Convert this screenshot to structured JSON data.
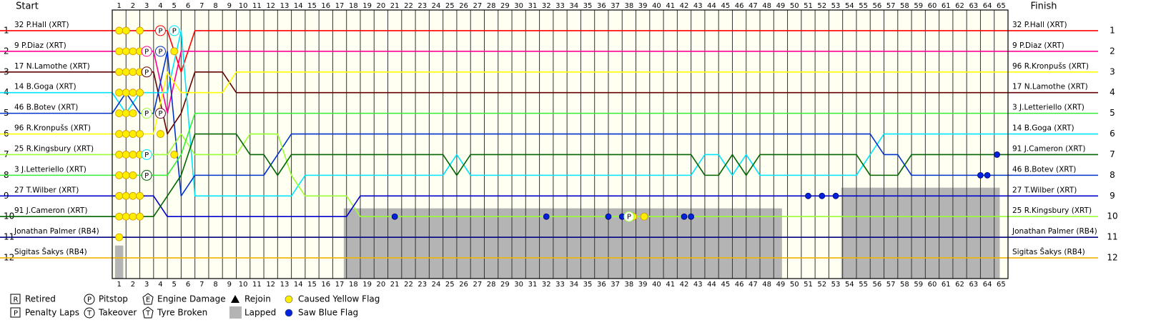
{
  "chart_data": {
    "type": "lap-chart",
    "start_label": "Start",
    "finish_label": "Finish",
    "xlim": [
      0,
      65
    ],
    "ylim": [
      0,
      13
    ],
    "y_inverted": true,
    "x": [
      0,
      1,
      2,
      3,
      4,
      5,
      6,
      7,
      8,
      9,
      10,
      11,
      12,
      13,
      14,
      15,
      16,
      17,
      18,
      19,
      20,
      21,
      22,
      23,
      24,
      25,
      26,
      27,
      28,
      29,
      30,
      31,
      32,
      33,
      34,
      35,
      36,
      37,
      38,
      39,
      40,
      41,
      42,
      43,
      44,
      45,
      46,
      47,
      48,
      49,
      50,
      51,
      52,
      53,
      54,
      55,
      56,
      57,
      58,
      59,
      60,
      61,
      62,
      63,
      64,
      65
    ],
    "xticks": [
      1,
      2,
      3,
      4,
      5,
      6,
      7,
      8,
      9,
      10,
      11,
      12,
      13,
      14,
      15,
      16,
      17,
      18,
      19,
      20,
      21,
      22,
      23,
      24,
      25,
      26,
      27,
      28,
      29,
      30,
      31,
      32,
      33,
      34,
      35,
      36,
      37,
      38,
      39,
      40,
      41,
      42,
      43,
      44,
      45,
      46,
      47,
      48,
      49,
      50,
      51,
      52,
      53,
      54,
      55,
      56,
      57,
      58,
      59,
      60,
      61,
      62,
      63,
      64,
      65
    ],
    "yticks": [
      1,
      2,
      3,
      4,
      5,
      6,
      7,
      8,
      9,
      10,
      11,
      12
    ],
    "series": [
      {
        "name": "32 P.Hall (XRT)",
        "color": "#ff0000",
        "values": [
          1,
          1,
          1,
          1,
          1,
          3,
          1,
          1,
          1,
          1,
          1,
          1,
          1,
          1,
          1,
          1,
          1,
          1,
          1,
          1,
          1,
          1,
          1,
          1,
          1,
          1,
          1,
          1,
          1,
          1,
          1,
          1,
          1,
          1,
          1,
          1,
          1,
          1,
          1,
          1,
          1,
          1,
          1,
          1,
          1,
          1,
          1,
          1,
          1,
          1,
          1,
          1,
          1,
          1,
          1,
          1,
          1,
          1,
          1,
          1,
          1,
          1,
          1,
          1,
          1,
          1
        ]
      },
      {
        "name": "9 P.Diaz (XRT)",
        "color": "#ff0099",
        "values": [
          2,
          2,
          2,
          2,
          5,
          2,
          2,
          2,
          2,
          2,
          2,
          2,
          2,
          2,
          2,
          2,
          2,
          2,
          2,
          2,
          2,
          2,
          2,
          2,
          2,
          2,
          2,
          2,
          2,
          2,
          2,
          2,
          2,
          2,
          2,
          2,
          2,
          2,
          2,
          2,
          2,
          2,
          2,
          2,
          2,
          2,
          2,
          2,
          2,
          2,
          2,
          2,
          2,
          2,
          2,
          2,
          2,
          2,
          2,
          2,
          2,
          2,
          2,
          2,
          2,
          2
        ]
      },
      {
        "name": "17 N.Lamothe (XRT)",
        "color": "#660000",
        "values": [
          3,
          3,
          3,
          3,
          6,
          5,
          3,
          3,
          3,
          4,
          4,
          4,
          4,
          4,
          4,
          4,
          4,
          4,
          4,
          4,
          4,
          4,
          4,
          4,
          4,
          4,
          4,
          4,
          4,
          4,
          4,
          4,
          4,
          4,
          4,
          4,
          4,
          4,
          4,
          4,
          4,
          4,
          4,
          4,
          4,
          4,
          4,
          4,
          4,
          4,
          4,
          4,
          4,
          4,
          4,
          4,
          4,
          4,
          4,
          4,
          4,
          4,
          4,
          4,
          4,
          4
        ]
      },
      {
        "name": "14 B.Goga (XRT)",
        "color": "#00e5ff",
        "values": [
          4,
          5,
          4,
          4,
          4,
          1,
          9,
          9,
          9,
          9,
          9,
          9,
          9,
          9,
          8,
          8,
          8,
          8,
          8,
          8,
          8,
          8,
          8,
          8,
          8,
          7,
          8,
          8,
          8,
          8,
          8,
          8,
          8,
          8,
          8,
          8,
          8,
          8,
          8,
          8,
          8,
          8,
          8,
          7,
          7,
          8,
          7,
          8,
          8,
          8,
          8,
          8,
          8,
          8,
          8,
          7,
          6,
          6,
          6,
          6,
          6,
          6,
          6,
          6,
          6,
          6
        ]
      },
      {
        "name": "46 B.Botev (XRT)",
        "color": "#0033cc",
        "values": [
          5,
          4,
          5,
          5,
          2,
          9,
          8,
          8,
          8,
          8,
          8,
          8,
          7,
          6,
          6,
          6,
          6,
          6,
          6,
          6,
          6,
          6,
          6,
          6,
          6,
          6,
          6,
          6,
          6,
          6,
          6,
          6,
          6,
          6,
          6,
          6,
          6,
          6,
          6,
          6,
          6,
          6,
          6,
          6,
          6,
          6,
          6,
          6,
          6,
          6,
          6,
          6,
          6,
          6,
          6,
          6,
          7,
          7,
          8,
          8,
          8,
          8,
          8,
          8,
          8,
          8
        ]
      },
      {
        "name": "96 R.Kronpušs (XRT)",
        "color": "#ffff00",
        "values": [
          6,
          6,
          6,
          6,
          3,
          4,
          4,
          4,
          4,
          3,
          3,
          3,
          3,
          3,
          3,
          3,
          3,
          3,
          3,
          3,
          3,
          3,
          3,
          3,
          3,
          3,
          3,
          3,
          3,
          3,
          3,
          3,
          3,
          3,
          3,
          3,
          3,
          3,
          3,
          3,
          3,
          3,
          3,
          3,
          3,
          3,
          3,
          3,
          3,
          3,
          3,
          3,
          3,
          3,
          3,
          3,
          3,
          3,
          3,
          3,
          3,
          3,
          3,
          3,
          3,
          3
        ]
      },
      {
        "name": "25 R.Kingsbury (XRT)",
        "color": "#99ff33",
        "values": [
          7,
          7,
          7,
          7,
          7,
          6,
          7,
          7,
          7,
          7,
          6,
          6,
          6,
          8,
          9,
          9,
          9,
          9,
          10,
          10,
          10,
          10,
          10,
          10,
          10,
          10,
          10,
          10,
          10,
          10,
          10,
          10,
          10,
          10,
          10,
          10,
          10,
          10,
          10,
          10,
          10,
          10,
          10,
          10,
          10,
          10,
          10,
          10,
          10,
          10,
          10,
          10,
          10,
          10,
          10,
          10,
          10,
          10,
          10,
          10,
          10,
          10,
          10,
          10,
          10,
          10
        ]
      },
      {
        "name": "3 J.Letteriello (XRT)",
        "color": "#33ee33",
        "values": [
          8,
          8,
          8,
          8,
          8,
          7,
          5,
          5,
          5,
          5,
          5,
          5,
          5,
          5,
          5,
          5,
          5,
          5,
          5,
          5,
          5,
          5,
          5,
          5,
          5,
          5,
          5,
          5,
          5,
          5,
          5,
          5,
          5,
          5,
          5,
          5,
          5,
          5,
          5,
          5,
          5,
          5,
          5,
          5,
          5,
          5,
          5,
          5,
          5,
          5,
          5,
          5,
          5,
          5,
          5,
          5,
          5,
          5,
          5,
          5,
          5,
          5,
          5,
          5,
          5,
          5
        ]
      },
      {
        "name": "27 T.Wilber (XRT)",
        "color": "#0000cc",
        "values": [
          9,
          9,
          9,
          9,
          10,
          10,
          10,
          10,
          10,
          10,
          10,
          10,
          10,
          10,
          10,
          10,
          10,
          10,
          9,
          9,
          9,
          9,
          9,
          9,
          9,
          9,
          9,
          9,
          9,
          9,
          9,
          9,
          9,
          9,
          9,
          9,
          9,
          9,
          9,
          9,
          9,
          9,
          9,
          9,
          9,
          9,
          9,
          9,
          9,
          9,
          9,
          9,
          9,
          9,
          9,
          9,
          9,
          9,
          9,
          9,
          9,
          9,
          9,
          9,
          9,
          9
        ]
      },
      {
        "name": "91 J.Cameron (XRT)",
        "color": "#006600",
        "values": [
          10,
          10,
          10,
          10,
          9,
          8,
          6,
          6,
          6,
          6,
          7,
          7,
          8,
          7,
          7,
          7,
          7,
          7,
          7,
          7,
          7,
          7,
          7,
          7,
          7,
          8,
          7,
          7,
          7,
          7,
          7,
          7,
          7,
          7,
          7,
          7,
          7,
          7,
          7,
          7,
          7,
          7,
          7,
          8,
          8,
          7,
          8,
          7,
          7,
          7,
          7,
          7,
          7,
          7,
          7,
          8,
          8,
          8,
          7,
          7,
          7,
          7,
          7,
          7,
          7,
          7
        ]
      },
      {
        "name": "Jonathan Palmer (RB4)",
        "color": "#000080",
        "values": [
          11,
          11,
          11,
          11,
          11,
          11,
          11,
          11,
          11,
          11,
          11,
          11,
          11,
          11,
          11,
          11,
          11,
          11,
          11,
          11,
          11,
          11,
          11,
          11,
          11,
          11,
          11,
          11,
          11,
          11,
          11,
          11,
          11,
          11,
          11,
          11,
          11,
          11,
          11,
          11,
          11,
          11,
          11,
          11,
          11,
          11,
          11,
          11,
          11,
          11,
          11,
          11,
          11,
          11,
          11,
          11,
          11,
          11,
          11,
          11,
          11,
          11,
          11,
          11,
          11,
          11
        ]
      },
      {
        "name": "Sigitas Šakys (RB4)",
        "color": "#f0b400",
        "values": [
          12,
          12,
          12,
          12,
          12,
          12,
          12,
          12,
          12,
          12,
          12,
          12,
          12,
          12,
          12,
          12,
          12,
          12,
          12,
          12,
          12,
          12,
          12,
          12,
          12,
          12,
          12,
          12,
          12,
          12,
          12,
          12,
          12,
          12,
          12,
          12,
          12,
          12,
          12,
          12,
          12,
          12,
          12,
          12,
          12,
          12,
          12,
          12,
          12,
          12,
          12,
          12,
          12,
          12,
          12,
          12,
          12,
          12,
          12,
          12,
          12,
          12,
          12,
          12,
          12,
          12
        ]
      }
    ],
    "lapped": [
      {
        "x": [
          0.2,
          0.8
        ],
        "y": [
          11.4,
          13
        ]
      },
      {
        "x": [
          16.8,
          48.6
        ],
        "y": [
          9.6,
          13
        ]
      },
      {
        "x": [
          52.9,
          64.4
        ],
        "y": [
          8.6,
          13
        ]
      }
    ],
    "pitstops": [
      {
        "x": 3.5,
        "y": 1,
        "color": "#ff0000"
      },
      {
        "x": 4.5,
        "y": 1,
        "color": "#00e5ff"
      },
      {
        "x": 2.5,
        "y": 2,
        "color": "#ff0099"
      },
      {
        "x": 3.5,
        "y": 2,
        "color": "#0033cc"
      },
      {
        "x": 2.5,
        "y": 3,
        "color": "#660000"
      },
      {
        "x": 2.5,
        "y": 5,
        "color": "#99ff33"
      },
      {
        "x": 3.5,
        "y": 5,
        "color": "#660033"
      },
      {
        "x": 2.5,
        "y": 7,
        "color": "#00e5ff"
      },
      {
        "x": 2.5,
        "y": 8,
        "color": "#006600"
      },
      {
        "x": 37.5,
        "y": 10,
        "color": "#99ff33"
      }
    ],
    "yellow_flags": {
      "color": "#ffee00",
      "x": [
        0.5,
        1,
        2,
        0.5,
        1,
        1.5,
        2,
        0.5,
        1,
        1.5,
        2,
        0.5,
        1,
        1.5,
        2,
        0.5,
        1,
        1.5,
        0.5,
        1,
        1.5,
        2,
        0.5,
        1,
        1.5,
        2,
        0.5,
        1,
        1.5,
        0.5,
        1,
        1.5,
        2,
        0.5,
        1,
        1.5,
        2,
        0.5,
        4.5,
        4.5,
        3.5,
        37.8,
        38.6
      ],
      "y": [
        1,
        1,
        1,
        2,
        2,
        2,
        2,
        3,
        3,
        3,
        3,
        4,
        4,
        4,
        4,
        5,
        5,
        5,
        6,
        6,
        6,
        6,
        7,
        7,
        7,
        7,
        8,
        8,
        8,
        9,
        9,
        9,
        9,
        10,
        10,
        10,
        10,
        11,
        2,
        7,
        6,
        10,
        10
      ]
    },
    "blue_flags": {
      "color": "#0022dd",
      "x": [
        20.5,
        31.5,
        36,
        37,
        41.5,
        42,
        50.5,
        51.5,
        52.5,
        63,
        63.5,
        64.2
      ],
      "y": [
        10,
        10,
        10,
        10,
        10,
        10,
        9,
        9,
        9,
        8,
        8,
        7
      ]
    },
    "legend": [
      {
        "symbol": "R",
        "label": "Retired",
        "marker": "square"
      },
      {
        "symbol": "P",
        "label": "Penalty Laps",
        "marker": "square"
      },
      {
        "symbol": "P",
        "label": "Pitstop",
        "marker": "circle"
      },
      {
        "symbol": "T",
        "label": "Takeover",
        "marker": "circle"
      },
      {
        "symbol": "E",
        "label": "Engine Damage",
        "marker": "shield"
      },
      {
        "symbol": "T",
        "label": "Tyre Broken",
        "marker": "shield"
      },
      {
        "label": "Rejoin",
        "marker": "triangle"
      },
      {
        "label": "Lapped",
        "marker": "gray-box"
      },
      {
        "label": "Caused Yellow Flag",
        "marker": "dot",
        "color": "#ffee00"
      },
      {
        "label": "Saw Blue Flag",
        "marker": "dot",
        "color": "#0022dd"
      }
    ]
  }
}
